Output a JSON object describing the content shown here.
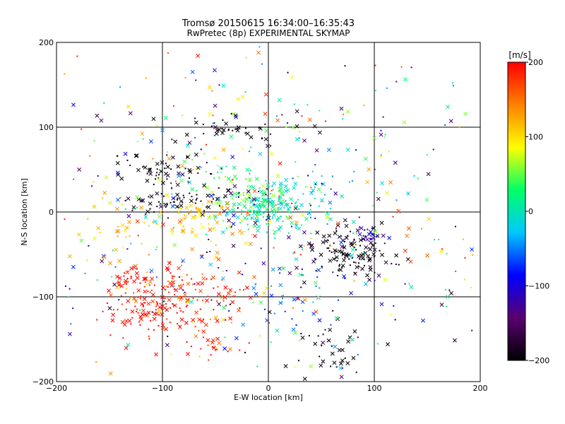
{
  "chart_data": {
    "type": "scatter",
    "title": "Tromsø 20150615 16:34:00–16:35:43",
    "subtitle": "RwPretec (8p) EXPERIMENTAL SKYMAP",
    "xlabel": "E-W location [km]",
    "ylabel": "N-S location [km]",
    "xlim": [
      -200,
      200
    ],
    "ylim": [
      -200,
      200
    ],
    "x_ticks": [
      "−200",
      "−100",
      "0",
      "100",
      "200"
    ],
    "y_ticks": [
      "−200",
      "−100",
      "0",
      "100",
      "200"
    ],
    "x_tick_values": [
      -200,
      -100,
      0,
      100,
      200
    ],
    "y_tick_values": [
      -200,
      -100,
      0,
      100,
      200
    ],
    "grid": true,
    "marker_symbols": [
      "cross",
      "dot"
    ],
    "colorbar": {
      "label": "[m/s]",
      "range": [
        -200,
        200
      ],
      "ticks": [
        "200",
        "100",
        "0",
        "−100",
        "−200"
      ],
      "tick_values": [
        200,
        100,
        0,
        -100,
        -200
      ],
      "colors": [
        "#000000",
        "#5a0070",
        "#0000ff",
        "#00c8ff",
        "#00ff66",
        "#ffff00",
        "#ff8000",
        "#ff0000"
      ]
    },
    "clusters": [
      {
        "x": -110,
        "y": -115,
        "sx": 22,
        "sy": 18,
        "v": 200,
        "n": 110
      },
      {
        "x": -75,
        "y": -95,
        "sx": 30,
        "sy": 18,
        "v": 185,
        "n": 90
      },
      {
        "x": -128,
        "y": -78,
        "sx": 10,
        "sy": 6,
        "v": 200,
        "n": 25
      },
      {
        "x": -60,
        "y": -155,
        "sx": 15,
        "sy": 10,
        "v": 190,
        "n": 22
      },
      {
        "x": 0,
        "y": 5,
        "sx": 18,
        "sy": 15,
        "v": 0,
        "n": 140
      },
      {
        "x": -30,
        "y": 20,
        "sx": 25,
        "sy": 20,
        "v": 40,
        "n": 70
      },
      {
        "x": -55,
        "y": -5,
        "sx": 22,
        "sy": 12,
        "v": 100,
        "n": 55
      },
      {
        "x": 40,
        "y": 10,
        "sx": 25,
        "sy": 20,
        "v": -20,
        "n": 35
      },
      {
        "x": 80,
        "y": -45,
        "sx": 18,
        "sy": 15,
        "v": -200,
        "n": 120
      },
      {
        "x": 95,
        "y": -28,
        "sx": 7,
        "sy": 6,
        "v": -110,
        "n": 22
      },
      {
        "x": -95,
        "y": 50,
        "sx": 20,
        "sy": 10,
        "v": -200,
        "n": 55
      },
      {
        "x": -60,
        "y": 15,
        "sx": 30,
        "sy": 8,
        "v": -200,
        "n": 45
      },
      {
        "x": -40,
        "y": 95,
        "sx": 25,
        "sy": 10,
        "v": -200,
        "n": 45
      },
      {
        "x": -105,
        "y": 10,
        "sx": 18,
        "sy": 6,
        "v": -200,
        "n": 25
      },
      {
        "x": 55,
        "y": -160,
        "sx": 25,
        "sy": 22,
        "v": -200,
        "n": 40
      },
      {
        "x": 20,
        "y": -100,
        "sx": 25,
        "sy": 25,
        "v": -60,
        "n": 35
      },
      {
        "x": -130,
        "y": -30,
        "sx": 35,
        "sy": 30,
        "v": 120,
        "n": 40
      },
      {
        "x": 0,
        "y": 0,
        "sx": 110,
        "sy": 100,
        "v": null,
        "n": 550
      }
    ]
  }
}
